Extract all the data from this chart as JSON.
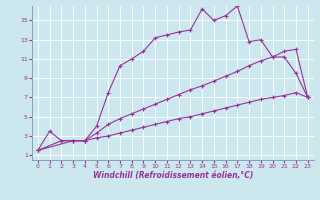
{
  "xlabel": "Windchill (Refroidissement éolien,°C)",
  "bg_color": "#cce8ee",
  "line_color": "#993399",
  "grid_color": "#aacccc",
  "xlim": [
    -0.5,
    23.5
  ],
  "ylim": [
    0.5,
    16.5
  ],
  "xticks": [
    0,
    1,
    2,
    3,
    4,
    5,
    6,
    7,
    8,
    9,
    10,
    11,
    12,
    13,
    14,
    15,
    16,
    17,
    18,
    19,
    20,
    21,
    22,
    23
  ],
  "yticks": [
    1,
    3,
    5,
    7,
    9,
    11,
    13,
    15
  ],
  "line1_x": [
    0,
    1,
    2,
    3,
    4,
    5,
    6,
    7,
    8,
    9,
    10,
    11,
    12,
    13,
    14,
    15,
    16,
    17,
    18,
    19,
    20,
    21,
    22,
    23
  ],
  "line1_y": [
    1.5,
    3.5,
    2.5,
    2.5,
    2.5,
    4.0,
    7.5,
    10.3,
    11.0,
    11.8,
    13.2,
    13.5,
    13.8,
    14.0,
    16.2,
    15.0,
    15.5,
    16.5,
    12.8,
    13.0,
    11.2,
    11.2,
    9.5,
    7.0
  ],
  "line2_x": [
    0,
    2,
    3,
    4,
    5,
    6,
    7,
    8,
    9,
    10,
    11,
    12,
    13,
    14,
    15,
    16,
    17,
    18,
    19,
    20,
    21,
    22,
    23
  ],
  "line2_y": [
    1.5,
    2.5,
    2.5,
    2.5,
    3.3,
    4.2,
    4.8,
    5.3,
    5.8,
    6.3,
    6.8,
    7.3,
    7.8,
    8.2,
    8.7,
    9.2,
    9.7,
    10.3,
    10.8,
    11.2,
    11.8,
    12.0,
    7.0
  ],
  "line3_x": [
    0,
    3,
    4,
    5,
    6,
    7,
    8,
    9,
    10,
    11,
    12,
    13,
    14,
    15,
    16,
    17,
    18,
    19,
    20,
    21,
    22,
    23
  ],
  "line3_y": [
    1.5,
    2.5,
    2.5,
    2.8,
    3.0,
    3.3,
    3.6,
    3.9,
    4.2,
    4.5,
    4.8,
    5.0,
    5.3,
    5.6,
    5.9,
    6.2,
    6.5,
    6.8,
    7.0,
    7.2,
    7.5,
    7.0
  ]
}
